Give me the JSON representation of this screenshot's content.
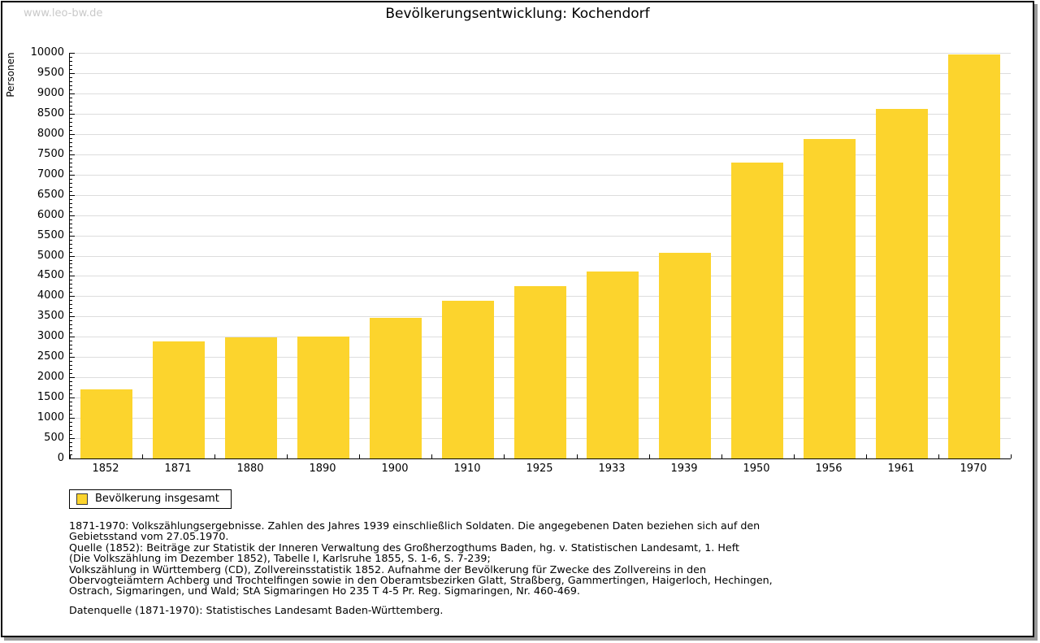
{
  "watermark": "www.leo-bw.de",
  "title": "Bevölkerungsentwicklung: Kochendorf",
  "colors": {
    "bar": "#FCD42D",
    "grid": "#DDDDDD",
    "axis": "#000000",
    "watermark": "#C9C9C9",
    "frame_shadow": "#9A9A9A"
  },
  "chart_data": {
    "type": "bar",
    "title": "Bevölkerungsentwicklung: Kochendorf",
    "xlabel": "",
    "ylabel": "Personen",
    "categories": [
      "1852",
      "1871",
      "1880",
      "1890",
      "1900",
      "1910",
      "1925",
      "1933",
      "1939",
      "1950",
      "1956",
      "1961",
      "1970"
    ],
    "values": [
      1700,
      2880,
      2990,
      3000,
      3460,
      3890,
      4250,
      4600,
      5080,
      7300,
      7870,
      8610,
      9960
    ],
    "series_name": "Bevölkerung insgesamt",
    "ylim": [
      0,
      10000
    ],
    "ytick_interval": 500,
    "minor_tick_interval": 100,
    "grid": true,
    "bar_color": "#FCD42D",
    "legend_position": "bottom-left"
  },
  "legend": {
    "label": "Bevölkerung insgesamt"
  },
  "footnotes": {
    "lines": [
      "1871-1970: Volkszählungsergebnisse. Zahlen des Jahres 1939 einschließlich Soldaten. Die angegebenen Daten beziehen sich auf den",
      "Gebietsstand vom 27.05.1970.",
      "Quelle (1852): Beiträge zur Statistik der Inneren Verwaltung des Großherzogthums Baden, hg. v. Statistischen Landesamt, 1. Heft",
      "(Die Volkszählung im Dezember 1852), Tabelle I, Karlsruhe 1855, S. 1-6, S. 7-239;",
      "Volkszählung in Württemberg (CD), Zollvereinsstatistik 1852. Aufnahme der Bevölkerung für Zwecke des Zollvereins in den",
      "Obervogteiämtern Achberg und Trochtelfingen sowie in den Oberamtsbezirken Glatt, Straßberg, Gammertingen, Haigerloch, Hechingen,",
      "Ostrach, Sigmaringen, und Wald; StA Sigmaringen Ho 235 T 4-5 Pr. Reg. Sigmaringen, Nr. 460-469."
    ],
    "datasource": "Datenquelle (1871-1970): Statistisches Landesamt Baden-Württemberg."
  }
}
